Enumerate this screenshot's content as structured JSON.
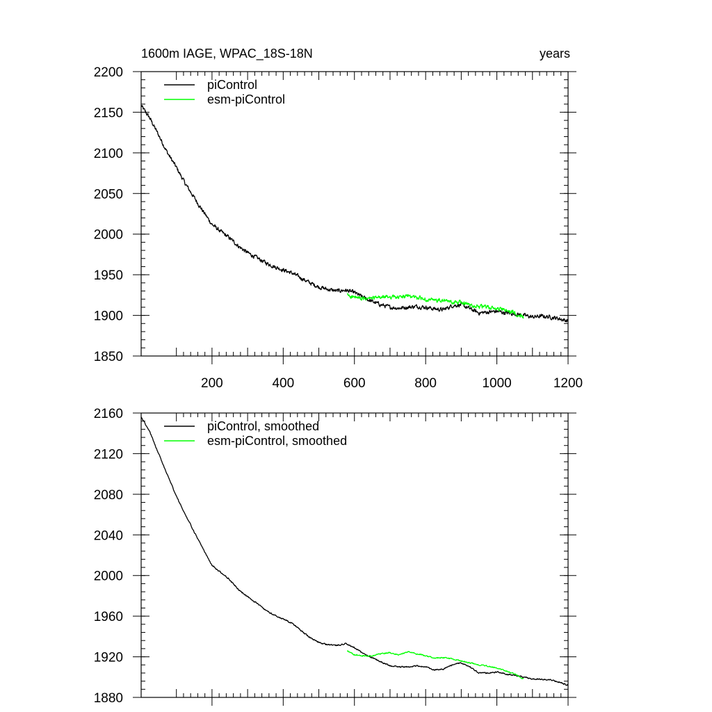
{
  "chart_data": [
    {
      "type": "line",
      "title": "1600m IAGE, WPAC_18S-18N",
      "units_label": "years",
      "xlabel": "",
      "ylabel": "",
      "xlim": [
        1,
        1200
      ],
      "ylim": [
        1850,
        2200
      ],
      "x_ticks": [
        200,
        400,
        600,
        800,
        1000,
        1200
      ],
      "x_tick_labels": [
        "200",
        "400",
        "600",
        "800",
        "1000",
        "1200"
      ],
      "y_ticks": [
        1850,
        1900,
        1950,
        2000,
        2050,
        2100,
        2150,
        2200
      ],
      "y_tick_labels": [
        "1850",
        "1900",
        "1950",
        "2000",
        "2050",
        "2100",
        "2150",
        "2200"
      ],
      "grid": false,
      "legend_position": "top-left",
      "series": [
        {
          "name": "piControl",
          "color": "#000000",
          "noise": 4,
          "x": [
            1,
            25,
            50,
            75,
            100,
            125,
            150,
            175,
            200,
            225,
            250,
            275,
            300,
            325,
            350,
            375,
            400,
            425,
            450,
            475,
            500,
            525,
            550,
            575,
            600,
            625,
            650,
            675,
            700,
            725,
            750,
            775,
            800,
            825,
            850,
            875,
            900,
            925,
            950,
            975,
            1000,
            1025,
            1050,
            1075,
            1100,
            1125,
            1150,
            1175,
            1200
          ],
          "values": [
            2158,
            2143,
            2122,
            2100,
            2082,
            2062,
            2045,
            2028,
            2012,
            2003,
            1995,
            1985,
            1977,
            1971,
            1965,
            1960,
            1956,
            1952,
            1946,
            1940,
            1935,
            1932,
            1930,
            1931,
            1928,
            1922,
            1917,
            1913,
            1910,
            1909,
            1910,
            1911,
            1910,
            1908,
            1907,
            1912,
            1913,
            1908,
            1903,
            1904,
            1905,
            1903,
            1902,
            1900,
            1898,
            1899,
            1898,
            1896,
            1893
          ]
        },
        {
          "name": "esm-piControl",
          "color": "#00ff00",
          "noise": 4,
          "x": [
            580,
            600,
            625,
            650,
            675,
            700,
            725,
            750,
            775,
            800,
            825,
            850,
            875,
            900,
            925,
            950,
            975,
            1000,
            1025,
            1050,
            1075
          ],
          "values": [
            1925,
            1922,
            1920,
            1921,
            1922,
            1923,
            1922,
            1924,
            1922,
            1920,
            1918,
            1918,
            1916,
            1916,
            1913,
            1911,
            1910,
            1908,
            1906,
            1903,
            1899
          ]
        }
      ]
    },
    {
      "type": "line",
      "title": "",
      "xlabel": "",
      "ylabel": "",
      "xlim": [
        1,
        1200
      ],
      "ylim": [
        1880,
        2160
      ],
      "x_ticks": [
        200,
        400,
        600,
        800,
        1000,
        1200
      ],
      "x_tick_labels": [],
      "y_ticks": [
        1880,
        1920,
        1960,
        2000,
        2040,
        2080,
        2120,
        2160
      ],
      "y_tick_labels": [
        "1880",
        "1920",
        "1960",
        "2000",
        "2040",
        "2080",
        "2120",
        "2160"
      ],
      "grid": false,
      "legend_position": "top-left",
      "series": [
        {
          "name": "piControl, smoothed",
          "color": "#000000",
          "noise": 1,
          "x": [
            1,
            25,
            50,
            75,
            100,
            125,
            150,
            175,
            200,
            225,
            250,
            275,
            300,
            325,
            350,
            375,
            400,
            425,
            450,
            475,
            500,
            525,
            550,
            575,
            600,
            625,
            650,
            675,
            700,
            725,
            750,
            775,
            800,
            825,
            850,
            875,
            900,
            925,
            950,
            975,
            1000,
            1025,
            1050,
            1075,
            1100,
            1125,
            1150,
            1175,
            1200
          ],
          "values": [
            2156,
            2142,
            2120,
            2099,
            2078,
            2060,
            2043,
            2026,
            2010,
            2003,
            1996,
            1986,
            1979,
            1973,
            1966,
            1961,
            1957,
            1953,
            1946,
            1939,
            1934,
            1932,
            1931,
            1933,
            1929,
            1923,
            1919,
            1915,
            1911,
            1910,
            1910,
            1911,
            1910,
            1907,
            1908,
            1912,
            1914,
            1910,
            1904,
            1904,
            1905,
            1903,
            1902,
            1900,
            1898,
            1898,
            1897,
            1895,
            1892
          ]
        },
        {
          "name": "esm-piControl, smoothed",
          "color": "#00ff00",
          "noise": 1,
          "x": [
            580,
            600,
            625,
            650,
            675,
            700,
            725,
            750,
            775,
            800,
            825,
            850,
            875,
            900,
            925,
            950,
            975,
            1000,
            1025,
            1050,
            1075
          ],
          "values": [
            1926,
            1922,
            1921,
            1921,
            1923,
            1924,
            1922,
            1925,
            1923,
            1921,
            1919,
            1919,
            1918,
            1916,
            1914,
            1912,
            1911,
            1909,
            1906,
            1903,
            1898
          ]
        }
      ]
    }
  ]
}
